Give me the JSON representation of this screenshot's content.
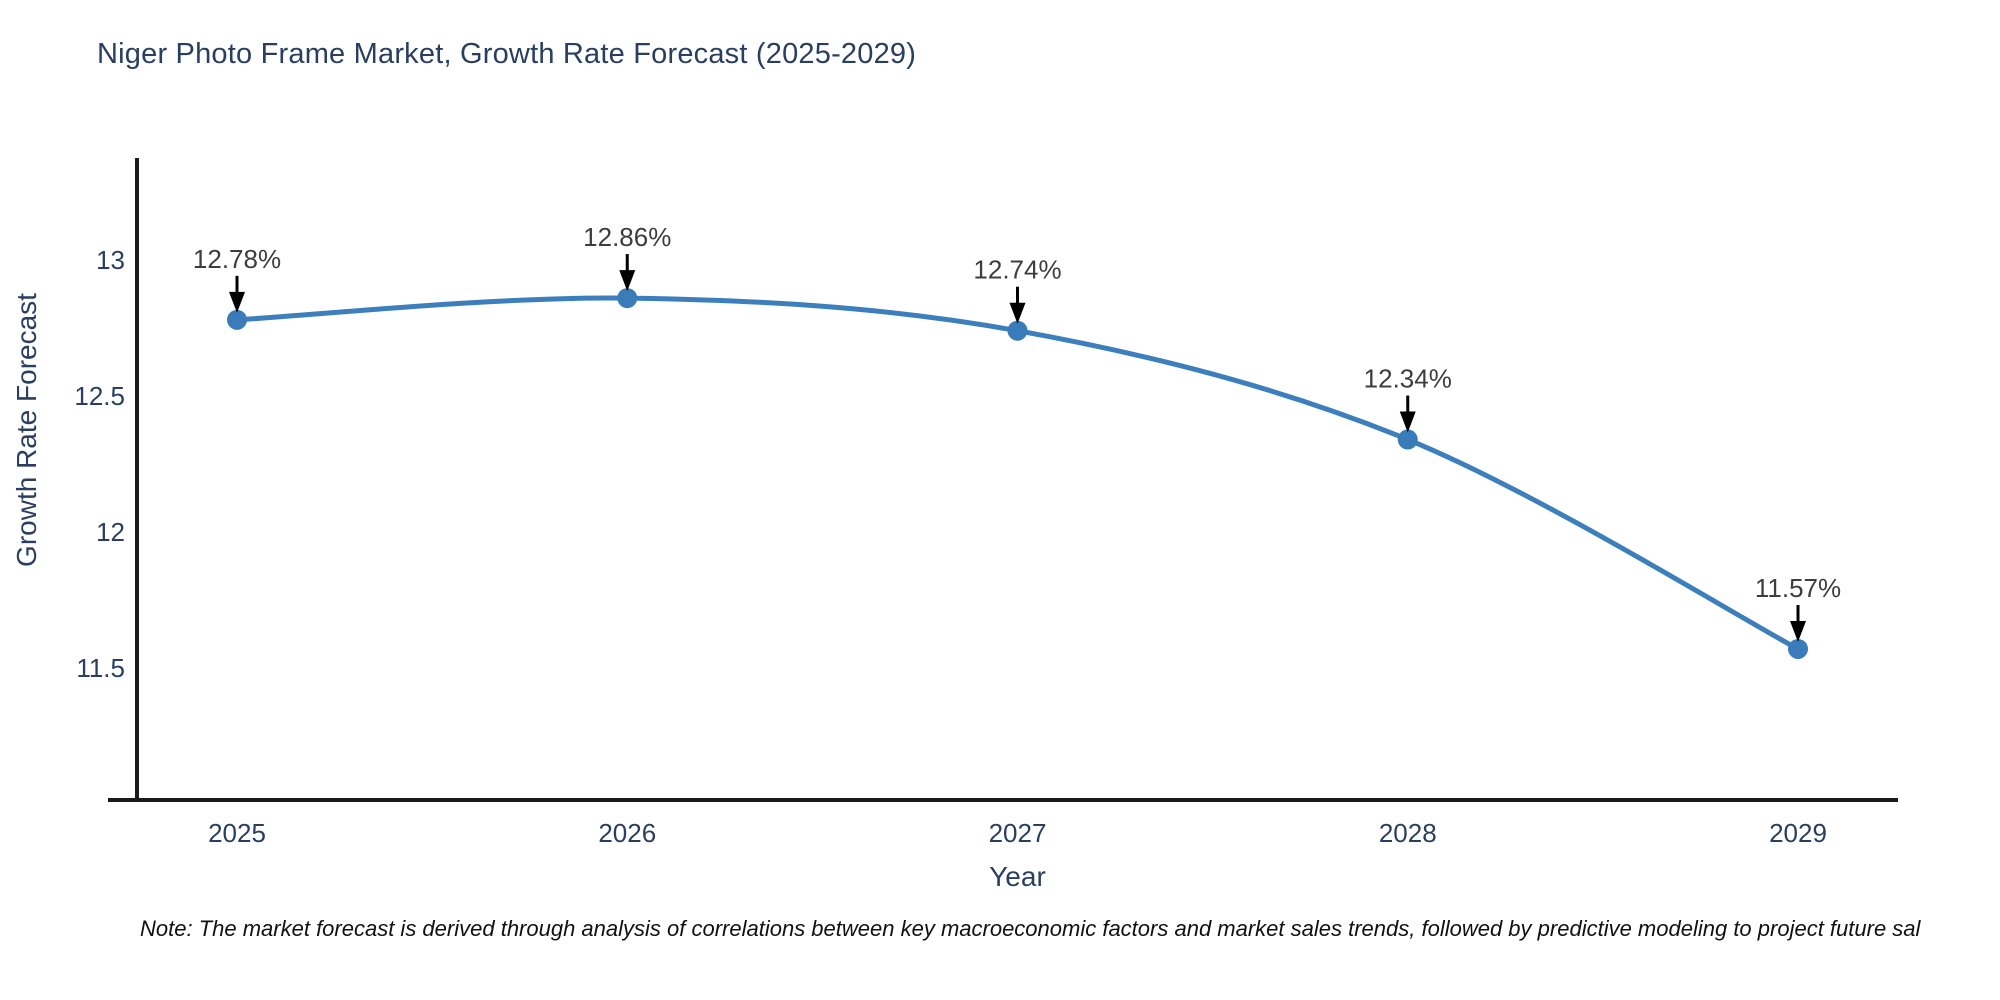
{
  "title": "Niger Photo Frame Market, Growth Rate Forecast (2025-2029)",
  "note": "Note: The market forecast is derived through analysis of correlations between key macroeconomic factors and market sales trends, followed by predictive modeling to project future sal",
  "chart_data": {
    "type": "line",
    "title": "Niger Photo Frame Market, Growth Rate Forecast (2025-2029)",
    "xlabel": "Year",
    "ylabel": "Growth Rate Forecast",
    "x": [
      2025,
      2026,
      2027,
      2028,
      2029
    ],
    "xtick_labels": [
      "2025",
      "2026",
      "2027",
      "2028",
      "2029"
    ],
    "series": [
      {
        "name": "Growth Rate Forecast",
        "values": [
          12.78,
          12.86,
          12.74,
          12.34,
          11.57
        ]
      }
    ],
    "point_labels": [
      "12.78%",
      "12.86%",
      "12.74%",
      "12.34%",
      "11.57%"
    ],
    "yticks": [
      13,
      12.5,
      12,
      11.5
    ],
    "ytick_labels": [
      "13",
      "12.5",
      "12",
      "11.5"
    ],
    "ylim": [
      11.0,
      13.4
    ],
    "grid": false,
    "legend_position": "none",
    "line_shape": "spline",
    "colors": {
      "line": "#3d7ebd",
      "marker": "#3a7cba",
      "axis_line": "#1a1a1a",
      "tick_text": "#2a3f5f",
      "axis_title_text": "#2a3f5f",
      "title_text": "#2a3f5f",
      "annotation_text": "#3d3d3d",
      "annotation_arrow": "#000000",
      "background": "#ffffff"
    }
  }
}
